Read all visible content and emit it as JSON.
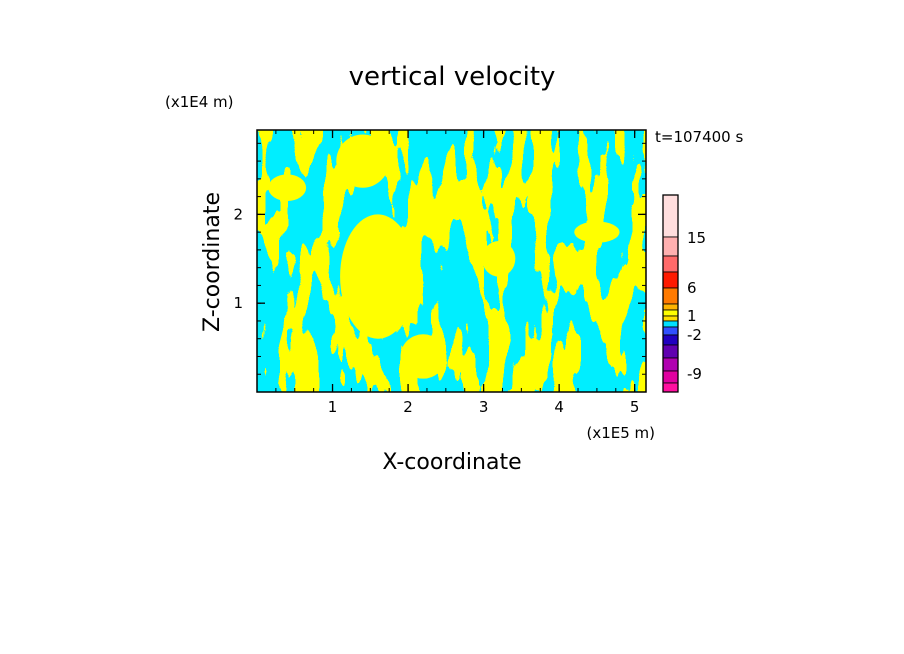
{
  "chart_data": {
    "type": "heatmap",
    "title": "vertical velocity",
    "xlabel": "X-coordinate",
    "ylabel": "Z-coordinate",
    "x_unit": "(x1E5 m)",
    "y_unit": "(x1E4 m)",
    "time_label": "t=107400 s",
    "xlim": [
      0,
      5.15
    ],
    "ylim": [
      0,
      2.95
    ],
    "x_ticks": [
      "1",
      "2",
      "3",
      "4",
      "5"
    ],
    "x_tick_values": [
      1,
      2,
      3,
      4,
      5
    ],
    "y_ticks": [
      "1",
      "2"
    ],
    "y_tick_values": [
      1,
      2
    ],
    "field_colors": {
      "positive": "#ffff00",
      "negative": "#00eeff"
    },
    "colorbar": {
      "levels_top_to_bottom": [
        {
          "color": "#ffdede"
        },
        {
          "color": "#ffb0b0"
        },
        {
          "color": "#ff6a6a"
        },
        {
          "color": "#ff1a00"
        },
        {
          "color": "#ff7a00"
        },
        {
          "color": "#ffb400"
        },
        {
          "color": "#ffff00"
        },
        {
          "color": "#ffe000"
        },
        {
          "color": "#00e0ff"
        },
        {
          "color": "#3050ff"
        },
        {
          "color": "#2000c0"
        },
        {
          "color": "#6000b0"
        },
        {
          "color": "#b000b0"
        },
        {
          "color": "#e000a0"
        },
        {
          "color": "#ff10a0"
        }
      ],
      "labels": [
        "15",
        "6",
        "1",
        "-2",
        "-9"
      ],
      "label_values": [
        15,
        6,
        1,
        -2,
        -9
      ]
    }
  }
}
